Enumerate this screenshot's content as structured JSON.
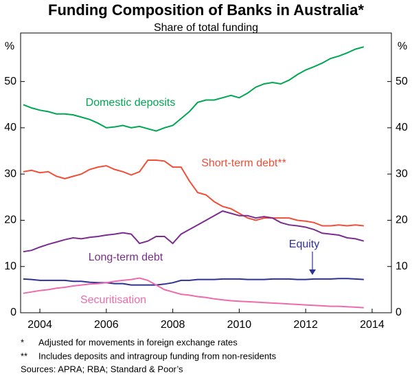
{
  "chart_data": {
    "type": "line",
    "title": "Funding Composition of Banks in Australia*",
    "subtitle": "Share of total funding",
    "y_unit": "%",
    "x": [
      2003.5,
      2003.75,
      2004,
      2004.25,
      2004.5,
      2004.75,
      2005,
      2005.25,
      2005.5,
      2005.75,
      2006,
      2006.25,
      2006.5,
      2006.75,
      2007,
      2007.25,
      2007.5,
      2007.75,
      2008,
      2008.25,
      2008.5,
      2008.75,
      2009,
      2009.25,
      2009.5,
      2009.75,
      2010,
      2010.25,
      2010.5,
      2010.75,
      2011,
      2011.25,
      2011.5,
      2011.75,
      2012,
      2012.25,
      2012.5,
      2012.75,
      2013,
      2013.25,
      2013.5,
      2013.75
    ],
    "series": [
      {
        "name": "Domestic deposits",
        "color": "#00a651",
        "values": [
          45,
          44.3,
          43.8,
          43.5,
          43,
          43,
          42.8,
          42.3,
          41.8,
          41,
          40,
          40.2,
          40.5,
          40,
          40.3,
          39.8,
          39.3,
          40,
          40.5,
          42,
          43.5,
          45.5,
          46,
          46,
          46.5,
          47,
          46.5,
          47.5,
          48.8,
          49.5,
          49.8,
          49.5,
          50.3,
          51.5,
          52.5,
          53.2,
          54,
          55,
          55.5,
          56.2,
          57,
          57.5
        ]
      },
      {
        "name": "Short-term debt**",
        "color": "#f04e37",
        "values": [
          30.5,
          30.8,
          30.3,
          30.5,
          29.5,
          29,
          29.5,
          30,
          31,
          31.5,
          31.8,
          31,
          30.5,
          29.8,
          30.5,
          33,
          33,
          32.8,
          31.5,
          31.5,
          28.5,
          26,
          25.5,
          24,
          23,
          22.5,
          21.5,
          20.5,
          20,
          20.5,
          20.5,
          20.5,
          20.5,
          20,
          19.8,
          19.5,
          18.8,
          18.8,
          19,
          18.8,
          19,
          18.8
        ]
      },
      {
        "name": "Long-term debt",
        "color": "#7b2d8e",
        "values": [
          13.2,
          13.5,
          14.2,
          14.8,
          15.3,
          15.8,
          16.2,
          16,
          16.3,
          16.5,
          16.8,
          17,
          17.3,
          17,
          15,
          15.5,
          16.5,
          16.5,
          15,
          17,
          18,
          19,
          20,
          21,
          22,
          21.5,
          21,
          21,
          20.5,
          20.8,
          20.5,
          19.5,
          19,
          18.8,
          18.5,
          18,
          17.2,
          17,
          16.8,
          16.2,
          16,
          15.5
        ]
      },
      {
        "name": "Equity",
        "color": "#2e3192",
        "values": [
          7.3,
          7.2,
          7,
          7,
          7,
          7,
          6.8,
          6.8,
          6.6,
          6.5,
          6.5,
          6.3,
          6.3,
          6,
          6,
          6,
          6,
          6.2,
          6.5,
          7,
          7,
          7.2,
          7.2,
          7.2,
          7.3,
          7.3,
          7.3,
          7.2,
          7.2,
          7.2,
          7.3,
          7.3,
          7.3,
          7.2,
          7.2,
          7.3,
          7.3,
          7.3,
          7.4,
          7.4,
          7.3,
          7.2
        ]
      },
      {
        "name": "Securitisation",
        "color": "#ee6aac",
        "values": [
          4.2,
          4.5,
          4.8,
          5,
          5.3,
          5.5,
          5.8,
          6,
          6.2,
          6.3,
          6.5,
          6.8,
          7,
          7.2,
          7.5,
          7,
          6,
          5,
          4.5,
          4,
          3.8,
          3.5,
          3.3,
          3,
          2.8,
          2.6,
          2.5,
          2.4,
          2.3,
          2.2,
          2.1,
          2,
          1.9,
          1.8,
          1.7,
          1.6,
          1.5,
          1.4,
          1.4,
          1.3,
          1.2,
          1.1
        ]
      }
    ],
    "xlim": [
      2003.42,
      2014.58
    ],
    "xticks": [
      2004,
      2006,
      2008,
      2010,
      2012,
      2014
    ],
    "ylim": [
      0,
      60.5
    ],
    "yticks": [
      0,
      10,
      20,
      30,
      40,
      50
    ],
    "y2lim": [
      0,
      60.5
    ],
    "y2ticks": [
      0,
      10,
      20,
      30,
      40,
      50
    ],
    "grid": false,
    "notes": [
      {
        "marker": "*",
        "text": "Adjusted for movements in foreign exchange rates"
      },
      {
        "marker": "**",
        "text": "Includes deposits and intragroup funding from non-residents"
      }
    ],
    "source": "Sources: APRA; RBA; Standard & Poor’s"
  }
}
